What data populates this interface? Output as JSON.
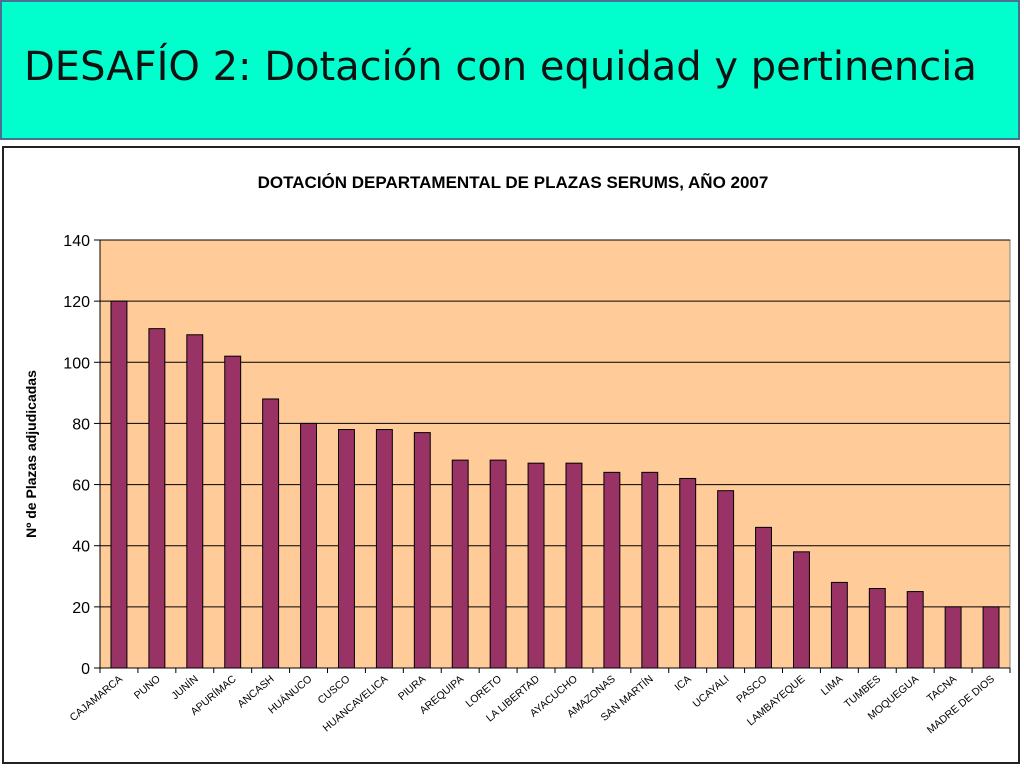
{
  "slide": {
    "title": "DESAFÍO 2: Dotación con equidad y pertinencia",
    "header_bg": "#00ffcc"
  },
  "chart_data": {
    "type": "bar",
    "title": "DOTACIÓN DEPARTAMENTAL DE PLAZAS SERUMS, AÑO 2007",
    "xlabel": "",
    "ylabel": "Nº de Plazas adjudicadas",
    "ylim": [
      0,
      140
    ],
    "yticks": [
      0,
      20,
      40,
      60,
      80,
      100,
      120,
      140
    ],
    "grid": true,
    "legend": "none",
    "plot_bg": "#ffcc99",
    "bar_color": "#993366",
    "categories": [
      "CAJAMARCA",
      "PUNO",
      "JUNÍN",
      "APURÍMAC",
      "ANCASH",
      "HUÁNUCO",
      "CUSCO",
      "HUANCAVELICA",
      "PIURA",
      "AREQUIPA",
      "LORETO",
      "LA LIBERTAD",
      "AYACUCHO",
      "AMAZONAS",
      "SAN MARTÍN",
      "ICA",
      "UCAYALI",
      "PASCO",
      "LAMBAYEQUE",
      "LIMA",
      "TUMBES",
      "MOQUEGUA",
      "TACNA",
      "MADRE DE DIOS"
    ],
    "values": [
      120,
      111,
      109,
      102,
      88,
      80,
      78,
      78,
      77,
      68,
      68,
      67,
      67,
      64,
      64,
      62,
      58,
      46,
      38,
      28,
      26,
      25,
      20,
      20
    ]
  }
}
